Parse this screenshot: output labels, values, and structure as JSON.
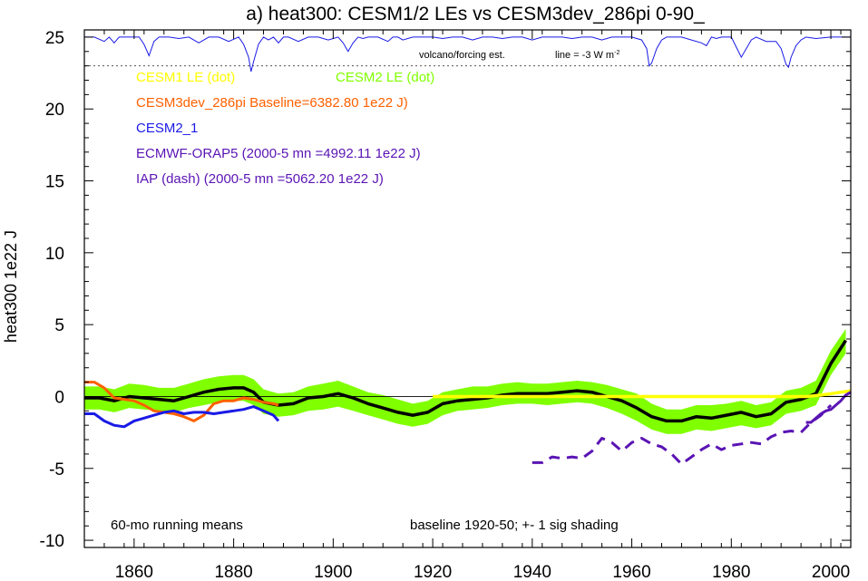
{
  "chart_data": {
    "type": "line",
    "title": "a) heat300: CESM1/2 LEs vs CESM3dev_286pi 0-90_",
    "ylabel": "heat300 1e22 J",
    "xlabel": "",
    "xlim": [
      1850,
      2004
    ],
    "ylim": [
      -10.5,
      25.5
    ],
    "grid": false,
    "x_ticks": [
      1860,
      1880,
      1900,
      1920,
      1940,
      1960,
      1980,
      2000
    ],
    "y_ticks": [
      -10,
      -5,
      0,
      5,
      10,
      15,
      20,
      25
    ],
    "x_tick_labels": [
      "1860",
      "1880",
      "1900",
      "1920",
      "1940",
      "1960",
      "1980",
      "2000"
    ],
    "y_tick_labels": [
      "-10",
      "-5",
      "0",
      "5",
      "10",
      "15",
      "20",
      "25"
    ],
    "legend": [
      {
        "text": "CESM1 LE (dot)",
        "color": "#ffff00"
      },
      {
        "text": "CESM2 LE (dot)",
        "color": "#80ff00"
      },
      {
        "text": "CESM3dev_286pi Baseline=6382.80 1e22 J)",
        "color": "#ff6000"
      },
      {
        "text": "CESM2_1",
        "color": "#1a1ae6"
      },
      {
        "text": "ECMWF-ORAP5 (2000-5 mn =4992.11 1e22 J)",
        "color": "#5a14b4"
      },
      {
        "text": "IAP (dash) (2000-5 mn =5062.20 1e22 J)",
        "color": "#5a14b4"
      }
    ],
    "annotations": {
      "volcano": "volcano/forcing est.",
      "line_prefix": "line = -3 W m",
      "line_sup": "-2",
      "running": "60-mo running means",
      "baseline": "baseline 1920-50; +- 1 sig shading"
    },
    "volcano_line_value": 23,
    "series": [
      {
        "name": "CESM2 LE (dot)",
        "kind": "band",
        "color": "#80ff00",
        "x": [
          1850,
          1853,
          1856,
          1859,
          1862,
          1865,
          1868,
          1871,
          1874,
          1877,
          1880,
          1882,
          1884,
          1886,
          1889,
          1892,
          1895,
          1898,
          1901,
          1904,
          1907,
          1910,
          1913,
          1916,
          1919,
          1922,
          1925,
          1928,
          1931,
          1934,
          1937,
          1940,
          1943,
          1946,
          1949,
          1952,
          1955,
          1958,
          1961,
          1964,
          1967,
          1970,
          1973,
          1976,
          1979,
          1982,
          1985,
          1988,
          1991,
          1994,
          1997,
          2000,
          2003
        ],
        "upper": [
          0.7,
          0.7,
          0.5,
          0.9,
          0.8,
          0.6,
          0.6,
          0.9,
          1.2,
          1.4,
          1.5,
          1.5,
          1.2,
          0.5,
          0.2,
          0.3,
          0.7,
          0.9,
          1.1,
          0.7,
          0.3,
          0.1,
          -0.2,
          -0.5,
          -0.3,
          0.3,
          0.5,
          0.7,
          0.7,
          0.9,
          1.0,
          0.9,
          0.9,
          1.0,
          1.1,
          1.0,
          0.8,
          0.5,
          0.2,
          -0.5,
          -0.9,
          -0.9,
          -0.6,
          -0.6,
          -0.5,
          -0.3,
          -0.6,
          -0.4,
          0.4,
          0.6,
          1.1,
          3.2,
          4.7
        ],
        "lower": [
          -0.9,
          -0.9,
          -1.1,
          -0.8,
          -0.9,
          -1.0,
          -1.1,
          -0.8,
          -0.6,
          -0.4,
          -0.3,
          -0.3,
          -0.6,
          -1.2,
          -1.4,
          -1.3,
          -1.0,
          -0.9,
          -0.7,
          -1.0,
          -1.3,
          -1.6,
          -1.9,
          -2.1,
          -1.9,
          -1.3,
          -1.0,
          -0.9,
          -0.8,
          -0.6,
          -0.5,
          -0.5,
          -0.6,
          -0.5,
          -0.4,
          -0.5,
          -0.8,
          -1.2,
          -1.7,
          -2.3,
          -2.6,
          -2.6,
          -2.3,
          -2.4,
          -2.2,
          -2.0,
          -2.2,
          -2.0,
          -1.2,
          -1.0,
          -0.6,
          1.5,
          3.0
        ]
      },
      {
        "name": "CESM1 LE (dot)",
        "color": "#ffff00",
        "x": [
          1920,
          1940,
          1960,
          1980,
          1990,
          1995,
          1998,
          2000,
          2002,
          2004
        ],
        "y": [
          0.0,
          0.0,
          0.0,
          0.0,
          0.0,
          0.0,
          0.1,
          0.2,
          0.3,
          0.4
        ]
      },
      {
        "name": "CESM2 LE (dot)",
        "color": "#000000",
        "x": [
          1850,
          1853,
          1856,
          1859,
          1862,
          1865,
          1868,
          1871,
          1874,
          1877,
          1880,
          1882,
          1884,
          1886,
          1889,
          1892,
          1895,
          1898,
          1901,
          1904,
          1907,
          1910,
          1913,
          1916,
          1919,
          1922,
          1925,
          1928,
          1931,
          1934,
          1937,
          1940,
          1943,
          1946,
          1949,
          1952,
          1955,
          1958,
          1961,
          1964,
          1967,
          1970,
          1973,
          1976,
          1979,
          1982,
          1985,
          1988,
          1991,
          1994,
          1997,
          2000,
          2003
        ],
        "y": [
          -0.1,
          -0.1,
          -0.3,
          0.0,
          -0.1,
          -0.2,
          -0.3,
          0.0,
          0.3,
          0.5,
          0.6,
          0.6,
          0.3,
          -0.4,
          -0.6,
          -0.5,
          -0.1,
          0.0,
          0.2,
          -0.1,
          -0.5,
          -0.8,
          -1.1,
          -1.3,
          -1.1,
          -0.5,
          -0.3,
          -0.2,
          -0.1,
          0.1,
          0.2,
          0.2,
          0.2,
          0.3,
          0.4,
          0.3,
          0.0,
          -0.3,
          -0.8,
          -1.4,
          -1.7,
          -1.7,
          -1.4,
          -1.5,
          -1.3,
          -1.1,
          -1.4,
          -1.2,
          -0.4,
          -0.2,
          0.2,
          2.3,
          3.9
        ]
      },
      {
        "name": "CESM3dev_286pi",
        "color": "#ff6000",
        "x": [
          1850,
          1852,
          1854,
          1856,
          1858,
          1860,
          1862,
          1864,
          1866,
          1868,
          1870,
          1872,
          1874,
          1876,
          1878,
          1880,
          1882,
          1884,
          1886,
          1888,
          1889
        ],
        "y": [
          1.0,
          1.0,
          0.6,
          -0.1,
          -0.2,
          -0.3,
          -0.6,
          -1.0,
          -1.1,
          -1.2,
          -1.4,
          -1.7,
          -1.3,
          -0.5,
          -0.3,
          -0.3,
          -0.1,
          -0.2,
          -0.4,
          -0.5,
          -0.6
        ]
      },
      {
        "name": "CESM2_1",
        "color": "#1a1ae6",
        "x": [
          1850,
          1852,
          1854,
          1856,
          1858,
          1860,
          1862,
          1864,
          1866,
          1868,
          1870,
          1872,
          1874,
          1876,
          1878,
          1880,
          1882,
          1884,
          1886,
          1888,
          1889
        ],
        "y": [
          -1.2,
          -1.2,
          -1.7,
          -2.0,
          -2.1,
          -1.7,
          -1.5,
          -1.3,
          -1.1,
          -1.0,
          -1.2,
          -1.1,
          -1.1,
          -1.2,
          -1.1,
          -1.0,
          -0.9,
          -0.7,
          -1.0,
          -1.3,
          -1.7
        ]
      },
      {
        "name": "ECMWF-ORAP5",
        "color": "#5a14b4",
        "x": [
          1995,
          1996,
          1997,
          1998,
          1999,
          2000,
          2001,
          2002,
          2003,
          2004
        ],
        "y": [
          -1.8,
          -1.8,
          -1.5,
          -1.2,
          -1.0,
          -0.9,
          -0.6,
          -0.3,
          0.1,
          0.3
        ]
      },
      {
        "name": "IAP (dash)",
        "color": "#5a14b4",
        "dash": true,
        "x": [
          1940,
          1942,
          1944,
          1946,
          1948,
          1950,
          1952,
          1954,
          1956,
          1958,
          1960,
          1962,
          1964,
          1966,
          1968,
          1970,
          1972,
          1974,
          1976,
          1978,
          1980,
          1982,
          1984,
          1986,
          1988,
          1990,
          1992,
          1994,
          1996,
          1998,
          2000
        ],
        "y": [
          -4.6,
          -4.6,
          -4.2,
          -4.3,
          -4.2,
          -4.3,
          -3.8,
          -2.9,
          -3.2,
          -3.8,
          -3.2,
          -2.9,
          -3.3,
          -3.5,
          -4.0,
          -4.7,
          -4.2,
          -3.7,
          -3.3,
          -3.7,
          -3.4,
          -3.3,
          -3.2,
          -3.3,
          -2.8,
          -2.5,
          -2.4,
          -2.5,
          -1.8,
          -1.3,
          -0.6
        ]
      }
    ],
    "volcano_series": {
      "name": "volcano/forcing est.",
      "color": "#1a1ae6",
      "x": [
        1850,
        1852,
        1854,
        1855,
        1856,
        1857,
        1858,
        1860,
        1861,
        1862,
        1863,
        1864,
        1865,
        1867,
        1869,
        1871,
        1873,
        1875,
        1877,
        1879,
        1881,
        1882,
        1883,
        1883.5,
        1884,
        1885,
        1886,
        1887,
        1888,
        1889,
        1890,
        1891,
        1893,
        1895,
        1897,
        1899,
        1901,
        1902,
        1903,
        1904,
        1905,
        1906,
        1907,
        1909,
        1911,
        1912,
        1913,
        1914,
        1916,
        1918,
        1920,
        1922,
        1924,
        1926,
        1928,
        1930,
        1932,
        1934,
        1936,
        1938,
        1940,
        1942,
        1944,
        1946,
        1948,
        1950,
        1952,
        1954,
        1956,
        1958,
        1960,
        1962,
        1963,
        1963.5,
        1964,
        1965,
        1966,
        1967,
        1968,
        1970,
        1972,
        1974,
        1975,
        1976,
        1977,
        1978,
        1980,
        1981,
        1982,
        1983,
        1984,
        1985,
        1987,
        1989,
        1990,
        1991,
        1991.5,
        1992,
        1993,
        1994,
        1995,
        1997,
        2000,
        2004
      ],
      "y": [
        25,
        25,
        24.7,
        25,
        24.6,
        25,
        25,
        25,
        25,
        24.5,
        23.7,
        24.7,
        25,
        25,
        24.9,
        25,
        24.6,
        25,
        25,
        24.7,
        25,
        24.5,
        23.6,
        22.6,
        23.3,
        24.5,
        25,
        24.8,
        25,
        24.6,
        25,
        25,
        24.7,
        25,
        25,
        24.8,
        25,
        24.6,
        24.0,
        24.6,
        25,
        24.9,
        25,
        25,
        24.7,
        25,
        25,
        24.8,
        25,
        25,
        25,
        24.9,
        25,
        25,
        24.8,
        25,
        25,
        24.9,
        25,
        25,
        24.8,
        25,
        25,
        25,
        24.9,
        25,
        25,
        24.8,
        25,
        25,
        25,
        24.8,
        24.2,
        23.0,
        23.2,
        24.2,
        24.8,
        25,
        25,
        25,
        24.8,
        24.6,
        24.4,
        25,
        24.9,
        25,
        25,
        24.3,
        23.6,
        24.2,
        24.8,
        25,
        24.7,
        24.7,
        24.2,
        23.1,
        22.9,
        23.6,
        24.4,
        24.8,
        25,
        24.9,
        25,
        25
      ]
    }
  }
}
